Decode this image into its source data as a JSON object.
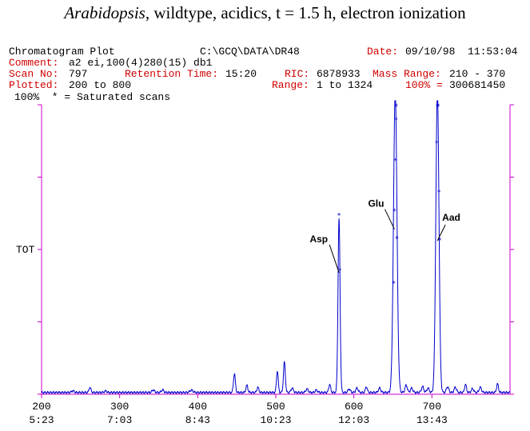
{
  "title": {
    "italic_part": "Arabidopsis",
    "rest": ", wildtype, acidics, t = 1.5 h, electron ionization"
  },
  "header": {
    "plot_label": "Chromatogram Plot",
    "path": "C:\\GCQ\\DATA\\DR48",
    "date_label": "Date:",
    "date_value": "09/10/98  11:53:04",
    "comment_label": "Comment:",
    "comment_value": "a2 ei,100(4)280(15) db1",
    "scan_label": "Scan No:",
    "scan_value": "797",
    "rt_label": "Retention Time:",
    "rt_value": "15:20",
    "ric_label": "RIC:",
    "ric_value": "6878933",
    "mass_label": "Mass Range:",
    "mass_value": "210 - 370",
    "plotted_label": "Plotted:",
    "plotted_value": "200 to 800",
    "range_label": "Range:",
    "range_value": "1 to 1324",
    "pct_label": "100% =",
    "pct_value": "300681450",
    "sat_line": "100%  * = Saturated scans"
  },
  "colors": {
    "trace": "#0000cc",
    "axis": "#cc00cc",
    "header_red": "#d00000"
  },
  "chart_data": {
    "type": "line",
    "ylabel": "TOT",
    "xlim": [
      200,
      800
    ],
    "ylim": [
      0,
      100
    ],
    "x_ticks": [
      200,
      300,
      400,
      500,
      600,
      700
    ],
    "time_ticks": [
      "5:23",
      "7:03",
      "8:43",
      "10:23",
      "12:03",
      "13:43"
    ],
    "baseline": 0.6,
    "peaks": [
      {
        "x": 240,
        "y": 0.6,
        "w": 1.5
      },
      {
        "x": 262,
        "y": 1.8,
        "w": 1.2
      },
      {
        "x": 282,
        "y": 0.5,
        "w": 1.5
      },
      {
        "x": 343,
        "y": 0.9,
        "w": 1.5
      },
      {
        "x": 355,
        "y": 0.9,
        "w": 1.5
      },
      {
        "x": 392,
        "y": 0.8,
        "w": 2.0
      },
      {
        "x": 447,
        "y": 6.5,
        "w": 1.2
      },
      {
        "x": 463,
        "y": 2.5,
        "w": 1.2
      },
      {
        "x": 477,
        "y": 1.8,
        "w": 1.2
      },
      {
        "x": 502,
        "y": 7.5,
        "w": 1.1
      },
      {
        "x": 511,
        "y": 10.5,
        "w": 1.2
      },
      {
        "x": 521,
        "y": 1.5,
        "w": 1.5
      },
      {
        "x": 540,
        "y": 1.2,
        "w": 1.5
      },
      {
        "x": 552,
        "y": 0.8,
        "w": 1.5
      },
      {
        "x": 569,
        "y": 2.8,
        "w": 1.2
      },
      {
        "x": 581,
        "y": 60.0,
        "w": 1.3
      },
      {
        "x": 594,
        "y": 1.2,
        "w": 1.5
      },
      {
        "x": 604,
        "y": 1.5,
        "w": 1.5
      },
      {
        "x": 616,
        "y": 2.0,
        "w": 1.2
      },
      {
        "x": 633,
        "y": 1.5,
        "w": 1.5
      },
      {
        "x": 653,
        "y": 104.0,
        "w": 2.2
      },
      {
        "x": 667,
        "y": 2.5,
        "w": 1.5
      },
      {
        "x": 674,
        "y": 1.5,
        "w": 1.5
      },
      {
        "x": 688,
        "y": 2.0,
        "w": 1.5
      },
      {
        "x": 695,
        "y": 1.5,
        "w": 1.5
      },
      {
        "x": 707,
        "y": 104.0,
        "w": 2.0
      },
      {
        "x": 720,
        "y": 2.0,
        "w": 1.5
      },
      {
        "x": 730,
        "y": 1.8,
        "w": 1.5
      },
      {
        "x": 743,
        "y": 2.8,
        "w": 1.2
      },
      {
        "x": 752,
        "y": 1.3,
        "w": 1.5
      },
      {
        "x": 762,
        "y": 1.8,
        "w": 1.5
      },
      {
        "x": 784,
        "y": 3.0,
        "w": 1.2
      }
    ],
    "saturated_marks": [
      {
        "x": 581,
        "y": 62.0
      },
      {
        "x": 582,
        "y": 43.0
      },
      {
        "x": 651,
        "y": 38.5
      },
      {
        "x": 652,
        "y": 63.5
      },
      {
        "x": 653,
        "y": 81.0
      },
      {
        "x": 654,
        "y": 95.0
      },
      {
        "x": 654.5,
        "y": 104.5
      },
      {
        "x": 655,
        "y": 54.0
      },
      {
        "x": 706,
        "y": 87.0
      },
      {
        "x": 707,
        "y": 100.0
      },
      {
        "x": 708,
        "y": 104.5
      },
      {
        "x": 709,
        "y": 70.0
      },
      {
        "x": 710,
        "y": 53.5
      }
    ],
    "annotations": [
      {
        "text": "Asp",
        "x": 581,
        "y": 42
      },
      {
        "text": "Glu",
        "x": 652,
        "y": 57
      },
      {
        "text": "Aad",
        "x": 707,
        "y": 53
      }
    ]
  }
}
